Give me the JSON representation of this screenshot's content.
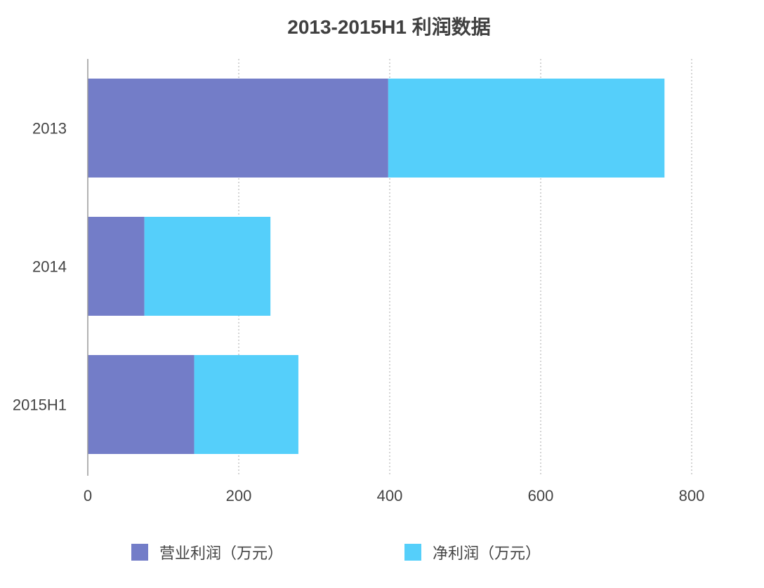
{
  "chart_data": {
    "type": "bar",
    "orientation": "horizontal",
    "stacked": true,
    "title": "2013-2015H1 利润数据",
    "categories": [
      "2013",
      "2014",
      "2015H1"
    ],
    "series": [
      {
        "name": "营业利润（万元）",
        "color": "#737dc8",
        "values": [
          398,
          75,
          141
        ]
      },
      {
        "name": "净利润（万元）",
        "color": "#55cffa",
        "values": [
          366,
          167,
          138
        ]
      }
    ],
    "xlim": [
      0,
      800
    ],
    "xticks": [
      0,
      200,
      400,
      600,
      800
    ],
    "xlabel": "",
    "ylabel": "",
    "grid": true,
    "legend": "bottom"
  }
}
